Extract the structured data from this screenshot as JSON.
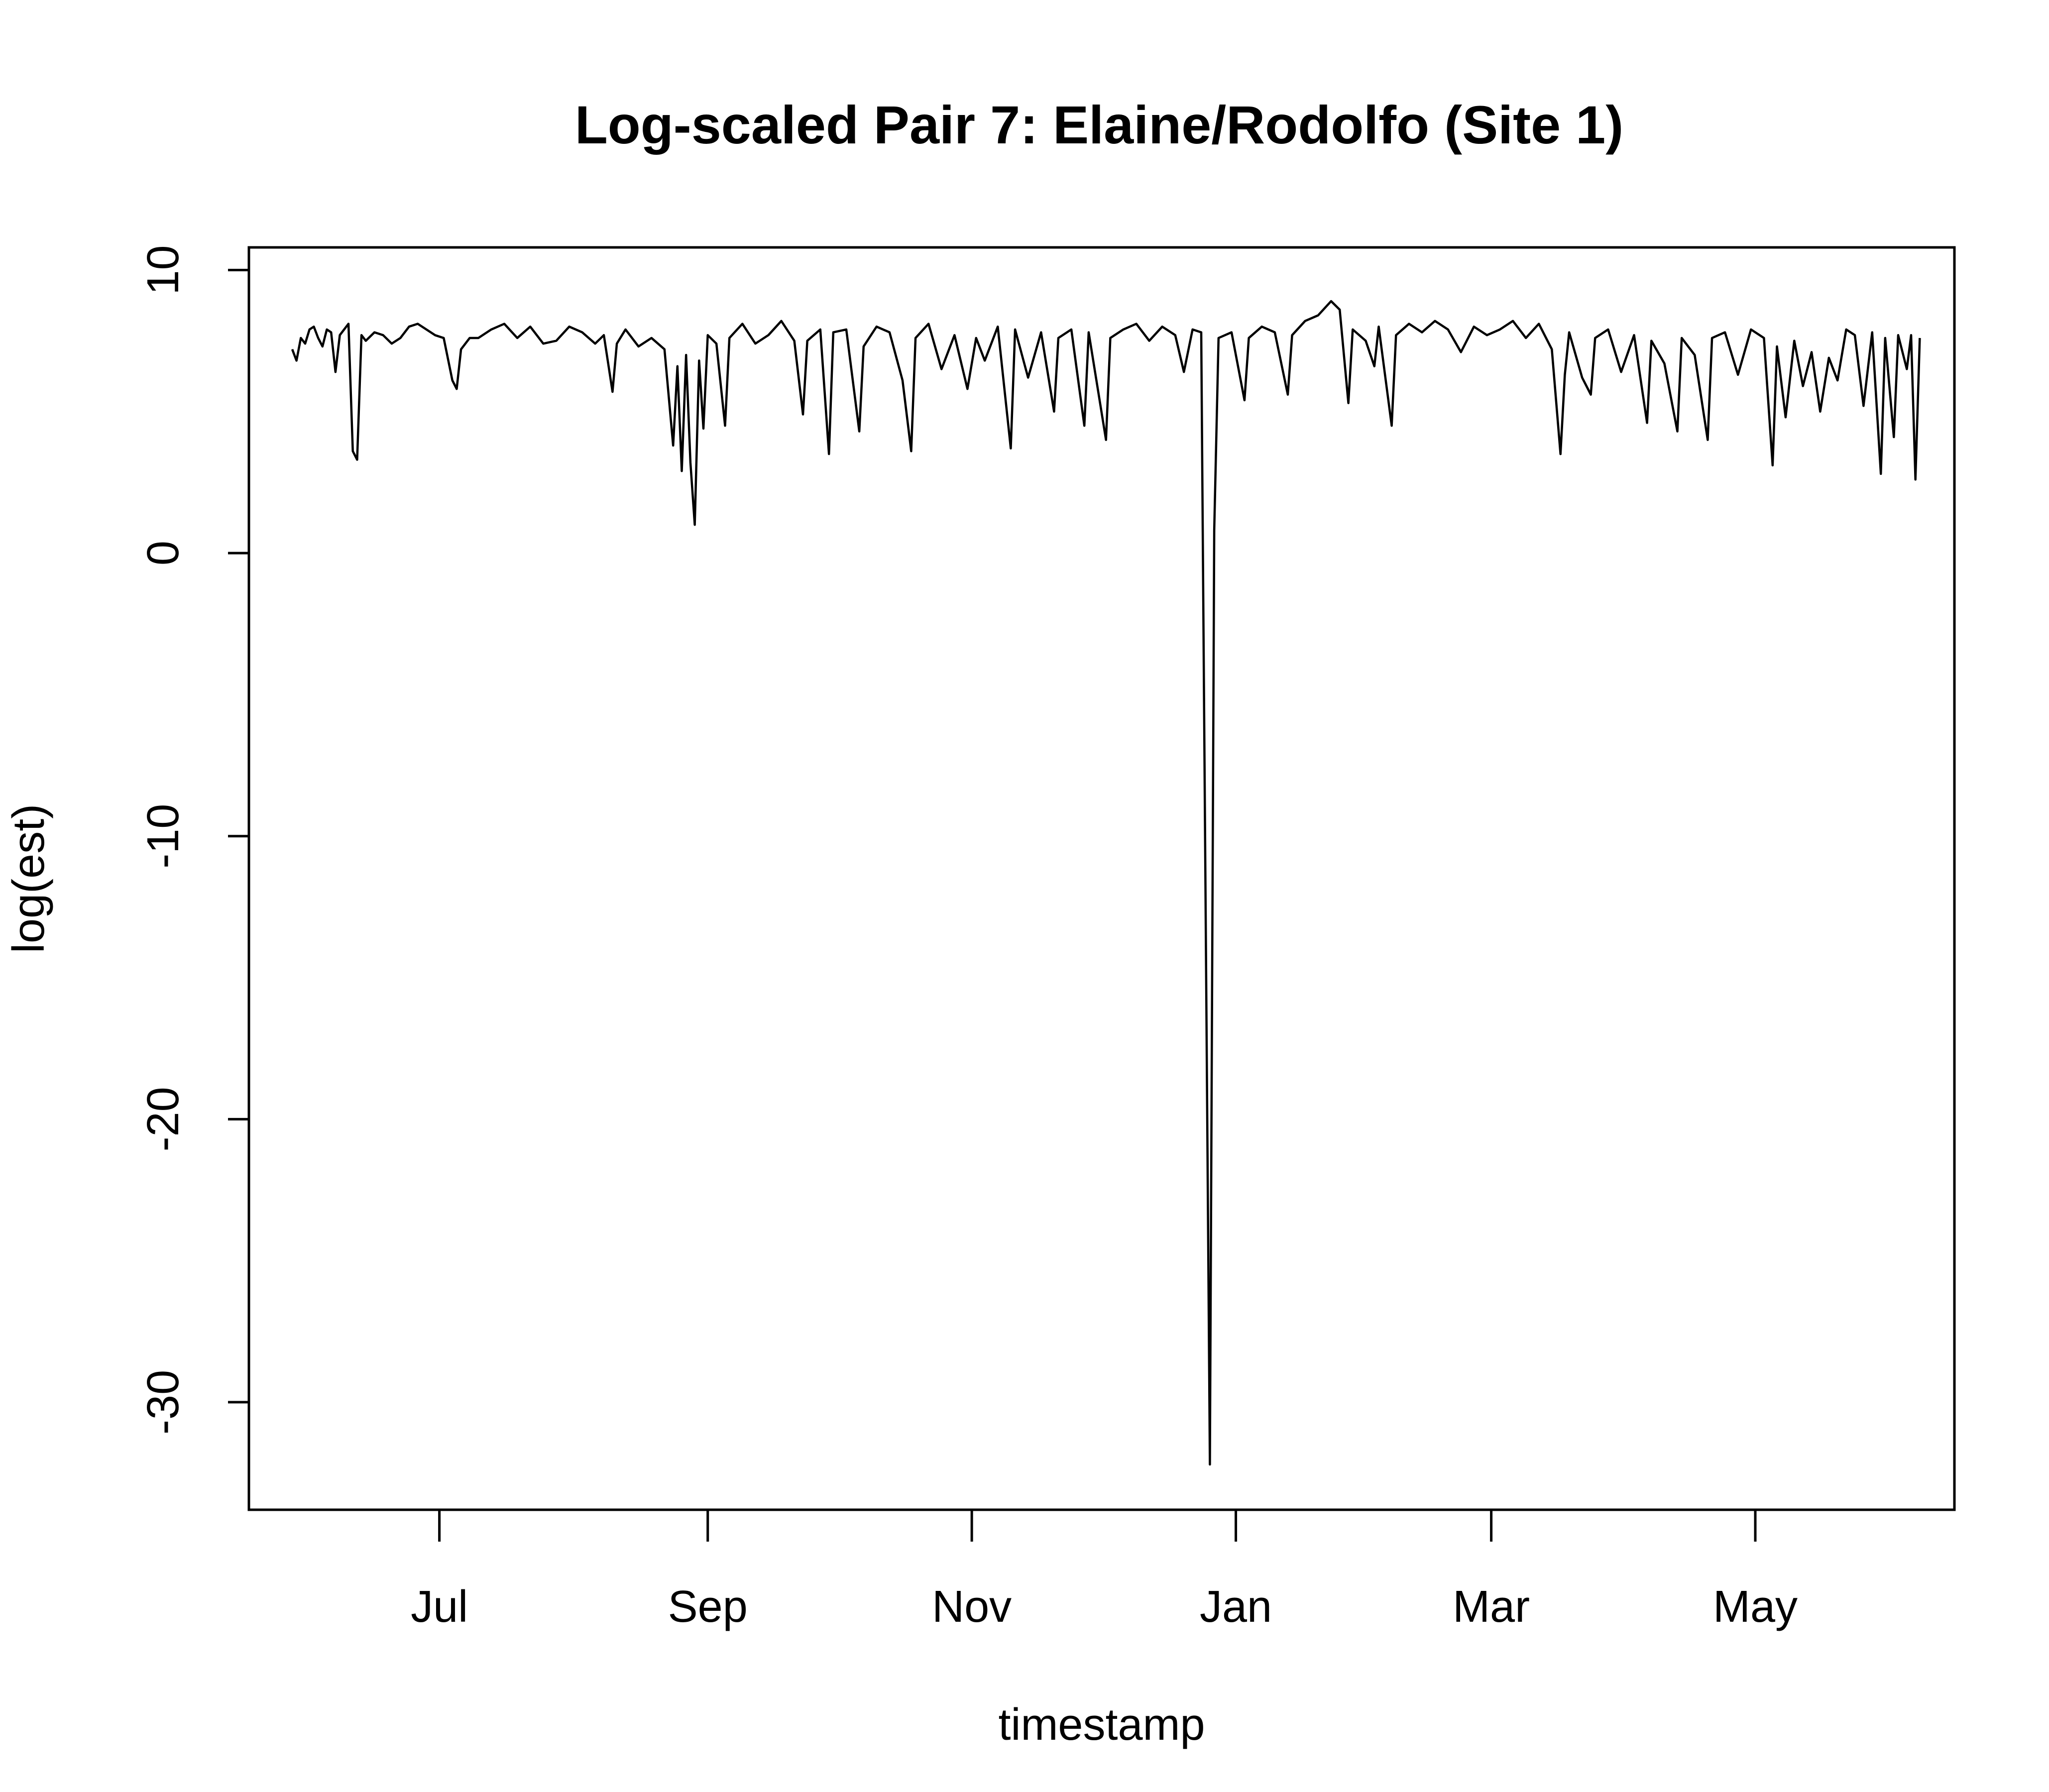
{
  "chart_data": {
    "type": "line",
    "title": "Log-scaled Pair 7: Elaine/Rodolfo (Site 1)",
    "xlabel": "timestamp",
    "ylabel": "log(est)",
    "x_tick_labels": [
      "Jul",
      "Sep",
      "Nov",
      "Jan",
      "Mar",
      "May"
    ],
    "x_tick_dates": [
      "2017-07-01",
      "2017-09-01",
      "2017-11-01",
      "2018-01-01",
      "2018-03-01",
      "2018-05-01"
    ],
    "y_ticks": [
      10,
      0,
      -10,
      -20,
      -30
    ],
    "xlim": [
      "2017-05-18",
      "2018-06-16"
    ],
    "ylim": [
      -33.8,
      10.8
    ],
    "grid": false,
    "legend": "none",
    "line_color": "#000000",
    "series": [
      {
        "points": [
          [
            "2017-05-28",
            7.2
          ],
          [
            "2017-05-29",
            6.8
          ],
          [
            "2017-05-30",
            7.6
          ],
          [
            "2017-05-31",
            7.4
          ],
          [
            "2017-06-01",
            7.9
          ],
          [
            "2017-06-02",
            8.0
          ],
          [
            "2017-06-03",
            7.6
          ],
          [
            "2017-06-04",
            7.3
          ],
          [
            "2017-06-05",
            7.9
          ],
          [
            "2017-06-06",
            7.8
          ],
          [
            "2017-06-07",
            6.4
          ],
          [
            "2017-06-08",
            7.7
          ],
          [
            "2017-06-09",
            7.9
          ],
          [
            "2017-06-10",
            8.1
          ],
          [
            "2017-06-11",
            3.6
          ],
          [
            "2017-06-12",
            3.3
          ],
          [
            "2017-06-13",
            7.7
          ],
          [
            "2017-06-14",
            7.5
          ],
          [
            "2017-06-16",
            7.8
          ],
          [
            "2017-06-18",
            7.7
          ],
          [
            "2017-06-20",
            7.4
          ],
          [
            "2017-06-22",
            7.6
          ],
          [
            "2017-06-24",
            8.0
          ],
          [
            "2017-06-26",
            8.1
          ],
          [
            "2017-06-28",
            7.9
          ],
          [
            "2017-06-30",
            7.7
          ],
          [
            "2017-07-02",
            7.6
          ],
          [
            "2017-07-04",
            6.1
          ],
          [
            "2017-07-05",
            5.8
          ],
          [
            "2017-07-06",
            7.2
          ],
          [
            "2017-07-08",
            7.6
          ],
          [
            "2017-07-10",
            7.6
          ],
          [
            "2017-07-13",
            7.9
          ],
          [
            "2017-07-16",
            8.1
          ],
          [
            "2017-07-19",
            7.6
          ],
          [
            "2017-07-22",
            8.0
          ],
          [
            "2017-07-25",
            7.4
          ],
          [
            "2017-07-28",
            7.5
          ],
          [
            "2017-07-31",
            8.0
          ],
          [
            "2017-08-03",
            7.8
          ],
          [
            "2017-08-06",
            7.4
          ],
          [
            "2017-08-08",
            7.7
          ],
          [
            "2017-08-10",
            5.7
          ],
          [
            "2017-08-11",
            7.4
          ],
          [
            "2017-08-13",
            7.9
          ],
          [
            "2017-08-16",
            7.3
          ],
          [
            "2017-08-19",
            7.6
          ],
          [
            "2017-08-22",
            7.2
          ],
          [
            "2017-08-24",
            3.8
          ],
          [
            "2017-08-25",
            6.6
          ],
          [
            "2017-08-26",
            2.9
          ],
          [
            "2017-08-27",
            7.0
          ],
          [
            "2017-08-28",
            3.2
          ],
          [
            "2017-08-29",
            1.0
          ],
          [
            "2017-08-30",
            6.8
          ],
          [
            "2017-08-31",
            4.4
          ],
          [
            "2017-09-01",
            7.7
          ],
          [
            "2017-09-03",
            7.4
          ],
          [
            "2017-09-05",
            4.5
          ],
          [
            "2017-09-06",
            7.6
          ],
          [
            "2017-09-09",
            8.1
          ],
          [
            "2017-09-12",
            7.4
          ],
          [
            "2017-09-15",
            7.7
          ],
          [
            "2017-09-18",
            8.2
          ],
          [
            "2017-09-21",
            7.5
          ],
          [
            "2017-09-23",
            4.9
          ],
          [
            "2017-09-24",
            7.5
          ],
          [
            "2017-09-27",
            7.9
          ],
          [
            "2017-09-29",
            3.5
          ],
          [
            "2017-09-30",
            7.8
          ],
          [
            "2017-10-03",
            7.9
          ],
          [
            "2017-10-06",
            4.3
          ],
          [
            "2017-10-07",
            7.3
          ],
          [
            "2017-10-10",
            8.0
          ],
          [
            "2017-10-13",
            7.8
          ],
          [
            "2017-10-16",
            6.1
          ],
          [
            "2017-10-18",
            3.6
          ],
          [
            "2017-10-19",
            7.6
          ],
          [
            "2017-10-22",
            8.1
          ],
          [
            "2017-10-25",
            6.5
          ],
          [
            "2017-10-28",
            7.7
          ],
          [
            "2017-10-31",
            5.8
          ],
          [
            "2017-11-02",
            7.6
          ],
          [
            "2017-11-04",
            6.8
          ],
          [
            "2017-11-07",
            8.0
          ],
          [
            "2017-11-10",
            3.7
          ],
          [
            "2017-11-11",
            7.9
          ],
          [
            "2017-11-14",
            6.2
          ],
          [
            "2017-11-17",
            7.8
          ],
          [
            "2017-11-20",
            5.0
          ],
          [
            "2017-11-21",
            7.6
          ],
          [
            "2017-11-24",
            7.9
          ],
          [
            "2017-11-27",
            4.5
          ],
          [
            "2017-11-28",
            7.8
          ],
          [
            "2017-12-02",
            4.0
          ],
          [
            "2017-12-03",
            7.6
          ],
          [
            "2017-12-06",
            7.9
          ],
          [
            "2017-12-09",
            8.1
          ],
          [
            "2017-12-12",
            7.5
          ],
          [
            "2017-12-15",
            8.0
          ],
          [
            "2017-12-18",
            7.7
          ],
          [
            "2017-12-20",
            6.4
          ],
          [
            "2017-12-22",
            7.9
          ],
          [
            "2017-12-24",
            7.8
          ],
          [
            "2017-12-26",
            -32.2
          ],
          [
            "2017-12-27",
            0.8
          ],
          [
            "2017-12-28",
            7.6
          ],
          [
            "2017-12-31",
            7.8
          ],
          [
            "2018-01-03",
            5.4
          ],
          [
            "2018-01-04",
            7.6
          ],
          [
            "2018-01-07",
            8.0
          ],
          [
            "2018-01-10",
            7.8
          ],
          [
            "2018-01-13",
            5.6
          ],
          [
            "2018-01-14",
            7.7
          ],
          [
            "2018-01-17",
            8.2
          ],
          [
            "2018-01-20",
            8.4
          ],
          [
            "2018-01-23",
            8.9
          ],
          [
            "2018-01-25",
            8.6
          ],
          [
            "2018-01-27",
            5.3
          ],
          [
            "2018-01-28",
            7.9
          ],
          [
            "2018-01-31",
            7.5
          ],
          [
            "2018-02-02",
            6.6
          ],
          [
            "2018-02-03",
            8.0
          ],
          [
            "2018-02-06",
            4.5
          ],
          [
            "2018-02-07",
            7.7
          ],
          [
            "2018-02-10",
            8.1
          ],
          [
            "2018-02-13",
            7.8
          ],
          [
            "2018-02-16",
            8.2
          ],
          [
            "2018-02-19",
            7.9
          ],
          [
            "2018-02-22",
            7.1
          ],
          [
            "2018-02-25",
            8.0
          ],
          [
            "2018-02-28",
            7.7
          ],
          [
            "2018-03-03",
            7.9
          ],
          [
            "2018-03-06",
            8.2
          ],
          [
            "2018-03-09",
            7.6
          ],
          [
            "2018-03-12",
            8.1
          ],
          [
            "2018-03-15",
            7.2
          ],
          [
            "2018-03-17",
            3.5
          ],
          [
            "2018-03-18",
            6.3
          ],
          [
            "2018-03-19",
            7.8
          ],
          [
            "2018-03-22",
            6.2
          ],
          [
            "2018-03-24",
            5.6
          ],
          [
            "2018-03-25",
            7.6
          ],
          [
            "2018-03-28",
            7.9
          ],
          [
            "2018-03-31",
            6.4
          ],
          [
            "2018-04-03",
            7.7
          ],
          [
            "2018-04-06",
            4.6
          ],
          [
            "2018-04-07",
            7.5
          ],
          [
            "2018-04-10",
            6.7
          ],
          [
            "2018-04-13",
            4.3
          ],
          [
            "2018-04-14",
            7.6
          ],
          [
            "2018-04-17",
            7.0
          ],
          [
            "2018-04-20",
            4.0
          ],
          [
            "2018-04-21",
            7.6
          ],
          [
            "2018-04-24",
            7.8
          ],
          [
            "2018-04-27",
            6.3
          ],
          [
            "2018-04-30",
            7.9
          ],
          [
            "2018-05-03",
            7.6
          ],
          [
            "2018-05-05",
            3.1
          ],
          [
            "2018-05-06",
            7.3
          ],
          [
            "2018-05-08",
            4.8
          ],
          [
            "2018-05-10",
            7.5
          ],
          [
            "2018-05-12",
            5.9
          ],
          [
            "2018-05-14",
            7.1
          ],
          [
            "2018-05-16",
            5.0
          ],
          [
            "2018-05-18",
            6.9
          ],
          [
            "2018-05-20",
            6.1
          ],
          [
            "2018-05-22",
            7.9
          ],
          [
            "2018-05-24",
            7.7
          ],
          [
            "2018-05-26",
            5.2
          ],
          [
            "2018-05-28",
            7.8
          ],
          [
            "2018-05-30",
            2.8
          ],
          [
            "2018-05-31",
            7.6
          ],
          [
            "2018-06-02",
            4.1
          ],
          [
            "2018-06-03",
            7.7
          ],
          [
            "2018-06-05",
            6.5
          ],
          [
            "2018-06-06",
            7.7
          ],
          [
            "2018-06-07",
            2.6
          ],
          [
            "2018-06-08",
            7.6
          ]
        ]
      }
    ]
  }
}
